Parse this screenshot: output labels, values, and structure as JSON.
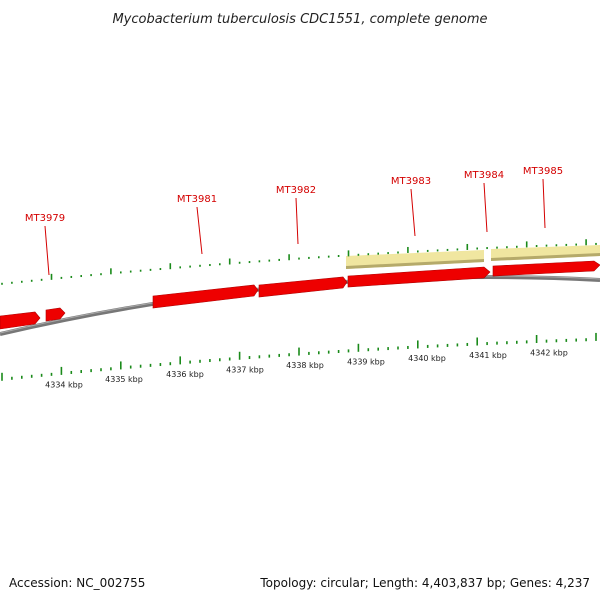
{
  "title": "Mycobacterium tuberculosis CDC1551, complete genome",
  "accession": "Accession: NC_002755",
  "summary": "Topology: circular; Length: 4,403,837 bp; Genes: 4,237",
  "colors": {
    "gene_red": "#ee0000",
    "gene_red_dark": "#b00000",
    "gene_beige": "#f0e6a0",
    "tick_green": "#1a8a1a",
    "backbone": "#888888",
    "label_red": "#d40000"
  },
  "genes": [
    {
      "label": "MT3979"
    },
    {
      "label": "MT3981"
    },
    {
      "label": "MT3982"
    },
    {
      "label": "MT3983"
    },
    {
      "label": "MT3984"
    },
    {
      "label": "MT3985"
    }
  ],
  "kbp_labels": [
    "4334 kbp",
    "4335 kbp",
    "4336 kbp",
    "4337 kbp",
    "4338 kbp",
    "4339 kbp",
    "4340 kbp",
    "4341 kbp",
    "4342 kbp"
  ]
}
